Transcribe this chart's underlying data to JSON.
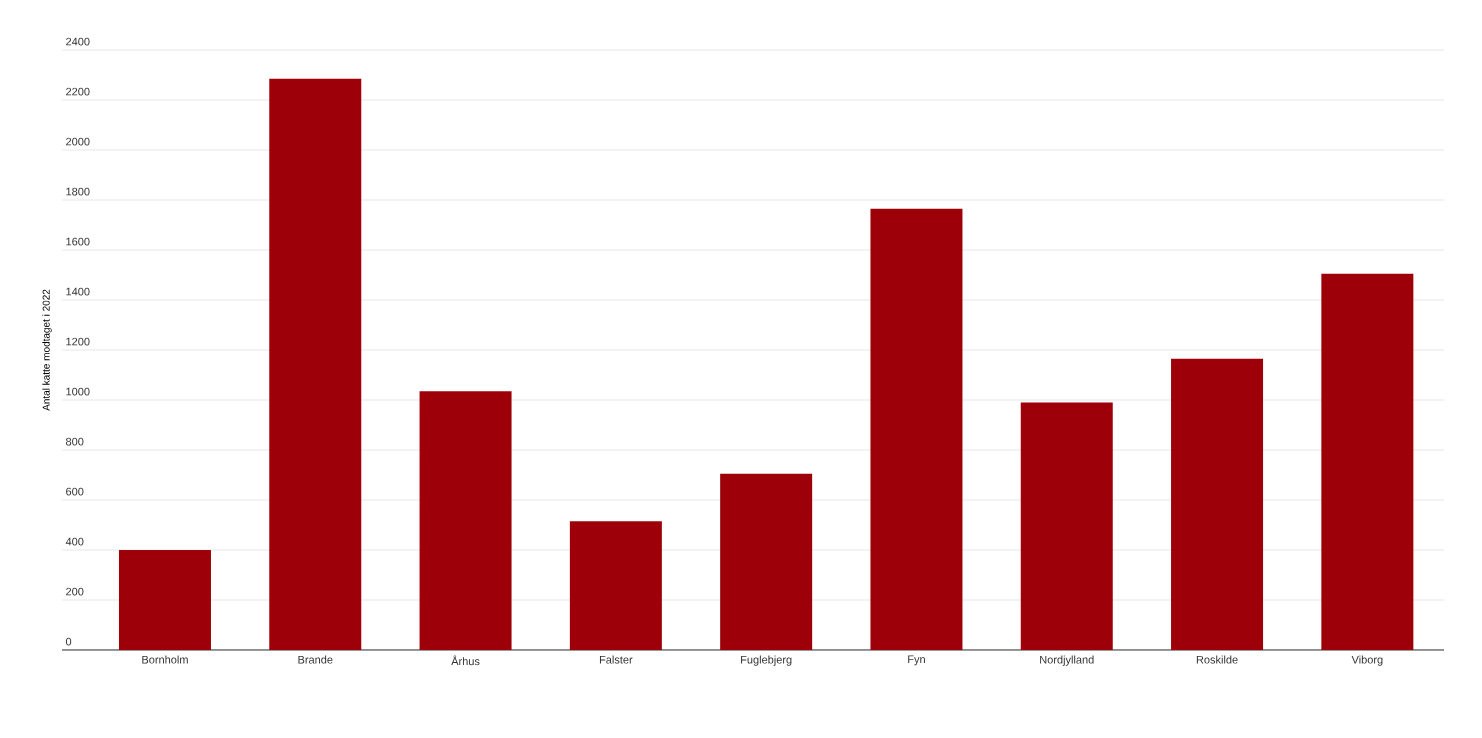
{
  "chart_data": {
    "type": "bar",
    "ylabel": "Antal katte modtaget i 2022",
    "categories": [
      "Bornholm",
      "Brande",
      "Århus",
      "Falster",
      "Fuglebjerg",
      "Fyn",
      "Nordjylland",
      "Roskilde",
      "Viborg"
    ],
    "values": [
      400,
      2285,
      1035,
      515,
      705,
      1765,
      990,
      1165,
      1505
    ],
    "color": "#9e0009",
    "ylim": [
      0,
      2400
    ],
    "yticks": [
      0,
      200,
      400,
      600,
      800,
      1000,
      1200,
      1400,
      1600,
      1800,
      2000,
      2200,
      2400
    ],
    "grid": "y"
  }
}
